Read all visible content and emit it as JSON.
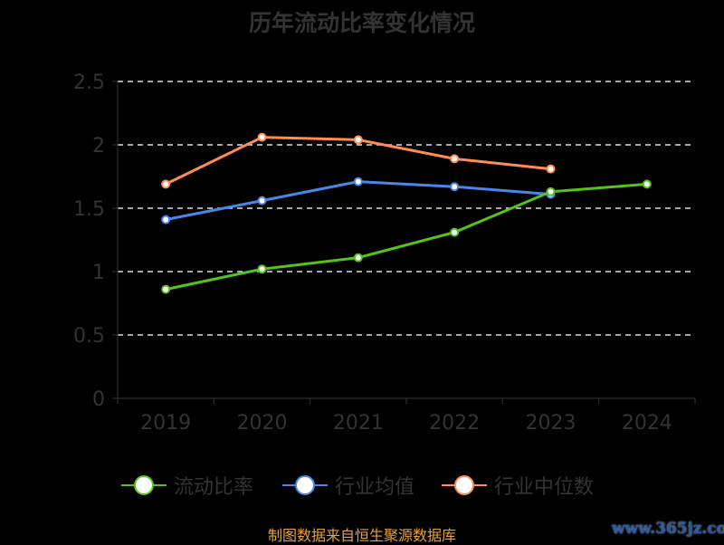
{
  "chart_data": {
    "type": "line",
    "title": "历年流动比率变化情况",
    "categories": [
      "2019",
      "2020",
      "2021",
      "2022",
      "2023",
      "2024"
    ],
    "ylim": [
      0,
      2.5
    ],
    "yticks": [
      "0",
      "0.5",
      "1",
      "1.5",
      "2",
      "2.5"
    ],
    "grid": true,
    "legend_position": "bottom",
    "series": [
      {
        "name": "流动比率",
        "color": "#52c41a",
        "values": [
          0.86,
          1.02,
          1.11,
          1.31,
          1.63,
          1.69
        ]
      },
      {
        "name": "行业均值",
        "color": "#4a86e8",
        "values": [
          1.41,
          1.56,
          1.71,
          1.67,
          1.61,
          null
        ]
      },
      {
        "name": "行业中位数",
        "color": "#ff8c55",
        "values": [
          1.69,
          2.06,
          2.04,
          1.89,
          1.81,
          null
        ]
      }
    ]
  },
  "source": "制图数据来自恒生聚源数据库",
  "watermark": "www.365jz.com"
}
